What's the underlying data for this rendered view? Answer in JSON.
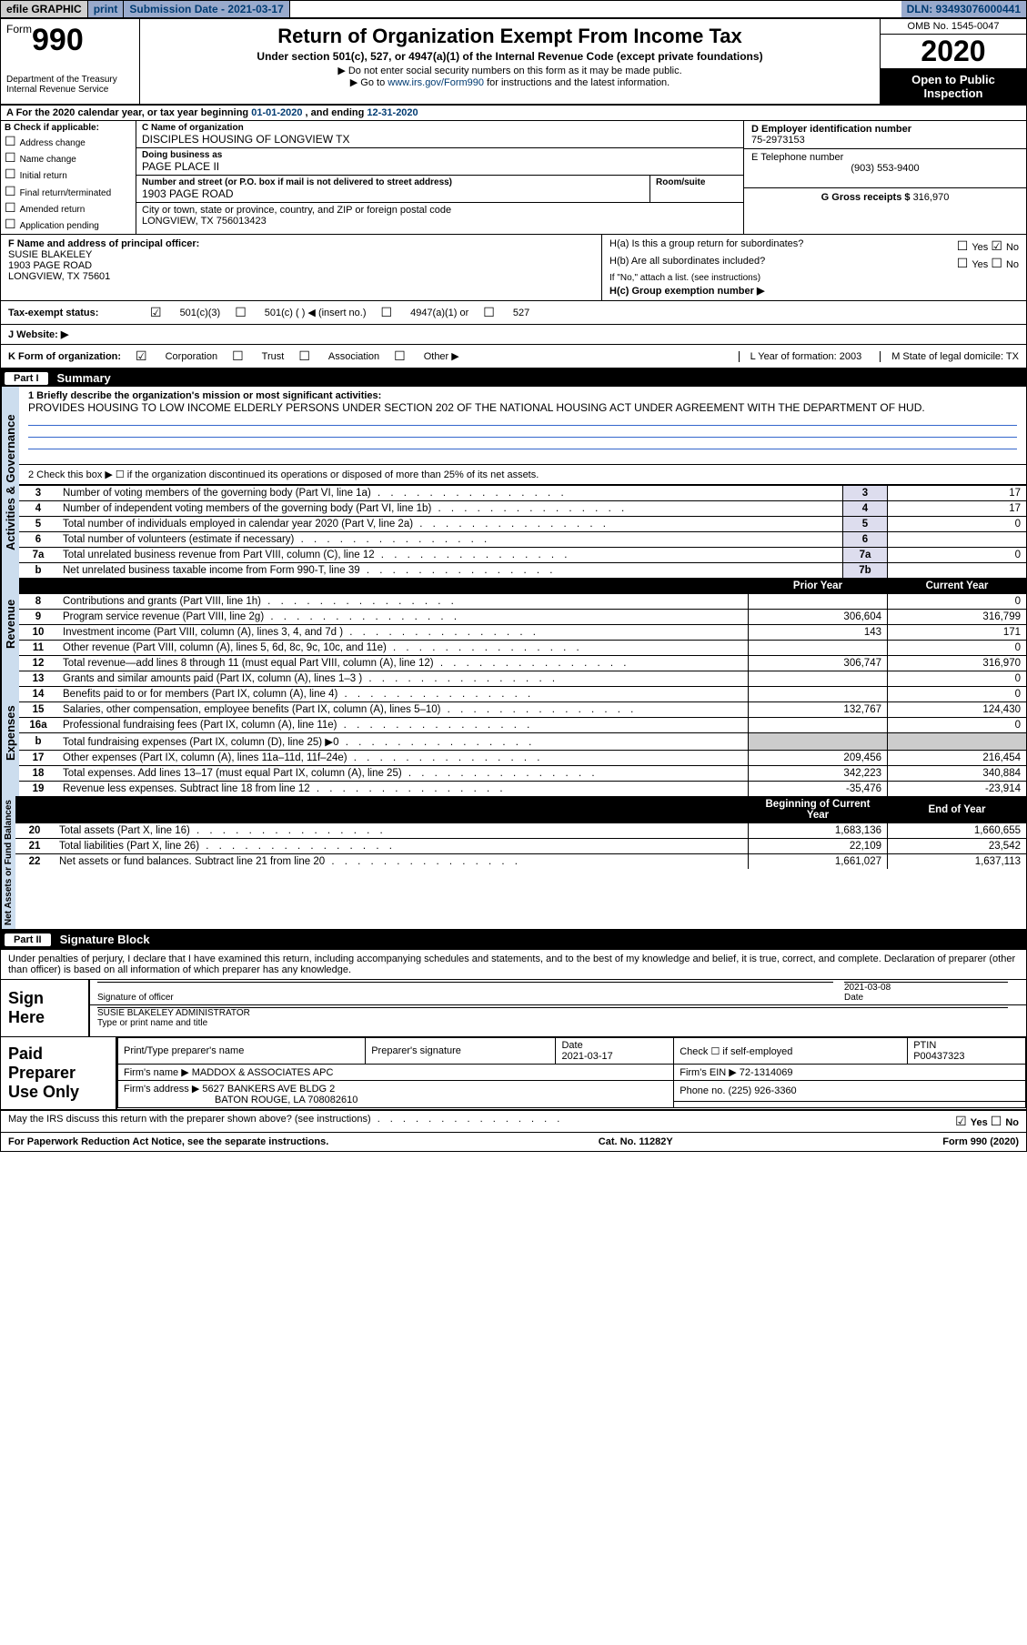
{
  "topbar": {
    "efile": "efile GRAPHIC",
    "print": "print",
    "subdate_label": "Submission Date - ",
    "subdate_value": "2021-03-17",
    "dln": "DLN: 93493076000441"
  },
  "header": {
    "form_word": "Form",
    "form_num": "990",
    "dept": "Department of the Treasury\nInternal Revenue Service",
    "title": "Return of Organization Exempt From Income Tax",
    "sub1": "Under section 501(c), 527, or 4947(a)(1) of the Internal Revenue Code (except private foundations)",
    "sub2": "▶ Do not enter social security numbers on this form as it may be made public.",
    "sub3_pre": "▶ Go to ",
    "sub3_link": "www.irs.gov/Form990",
    "sub3_post": " for instructions and the latest information.",
    "omb": "OMB No. 1545-0047",
    "year": "2020",
    "open": "Open to Public Inspection"
  },
  "rowA": {
    "text_pre": "A For the 2020 calendar year, or tax year beginning ",
    "begin": "01-01-2020",
    "mid": " , and ending ",
    "end": "12-31-2020"
  },
  "colB": {
    "title": "B Check if applicable:",
    "opts": [
      "Address change",
      "Name change",
      "Initial return",
      "Final return/terminated",
      "Amended return",
      "Application pending"
    ]
  },
  "colC": {
    "name_label": "C Name of organization",
    "name": "DISCIPLES HOUSING OF LONGVIEW TX",
    "dba_label": "Doing business as",
    "dba": "PAGE PLACE II",
    "street_label": "Number and street (or P.O. box if mail is not delivered to street address)",
    "street": "1903 PAGE ROAD",
    "room_label": "Room/suite",
    "city_label": "City or town, state or province, country, and ZIP or foreign postal code",
    "city": "LONGVIEW, TX  756013423"
  },
  "colD": {
    "ein_label": "D Employer identification number",
    "ein": "75-2973153",
    "phone_label": "E Telephone number",
    "phone": "(903) 553-9400",
    "gross_label": "G Gross receipts $ ",
    "gross": "316,970"
  },
  "rowF": {
    "label": "F  Name and address of principal officer:",
    "name": "SUSIE BLAKELEY",
    "addr1": "1903 PAGE ROAD",
    "addr2": "LONGVIEW, TX  75601"
  },
  "rowH": {
    "ha": "H(a)  Is this a group return for subordinates?",
    "ha_yes": "Yes",
    "ha_no": "No",
    "hb": "H(b)  Are all subordinates included?",
    "hb_note": "If \"No,\" attach a list. (see instructions)",
    "hc": "H(c)  Group exemption number ▶"
  },
  "rowI": {
    "label": "Tax-exempt status:",
    "opts": [
      "501(c)(3)",
      "501(c) (  ) ◀ (insert no.)",
      "4947(a)(1) or",
      "527"
    ]
  },
  "rowJ": {
    "label": "J  Website: ▶"
  },
  "rowK": {
    "label": "K Form of organization:",
    "opts": [
      "Corporation",
      "Trust",
      "Association",
      "Other ▶"
    ],
    "L": "L Year of formation: 2003",
    "M": "M State of legal domicile: TX"
  },
  "parts": {
    "p1": "Part I",
    "p1t": "Summary",
    "p2": "Part II",
    "p2t": "Signature Block"
  },
  "summary": {
    "line1_label": "1  Briefly describe the organization's mission or most significant activities:",
    "mission": "PROVIDES HOUSING TO LOW INCOME ELDERLY PERSONS UNDER SECTION 202 OF THE NATIONAL HOUSING ACT UNDER AGREEMENT WITH THE DEPARTMENT OF HUD.",
    "line2": "2  Check this box ▶ ☐  if the organization discontinued its operations or disposed of more than 25% of its net assets."
  },
  "gov_lines": [
    {
      "n": "3",
      "desc": "Number of voting members of the governing body (Part VI, line 1a)",
      "box": "3",
      "val": "17"
    },
    {
      "n": "4",
      "desc": "Number of independent voting members of the governing body (Part VI, line 1b)",
      "box": "4",
      "val": "17"
    },
    {
      "n": "5",
      "desc": "Total number of individuals employed in calendar year 2020 (Part V, line 2a)",
      "box": "5",
      "val": "0"
    },
    {
      "n": "6",
      "desc": "Total number of volunteers (estimate if necessary)",
      "box": "6",
      "val": ""
    },
    {
      "n": "7a",
      "desc": "Total unrelated business revenue from Part VIII, column (C), line 12",
      "box": "7a",
      "val": "0"
    },
    {
      "n": "b",
      "desc": "Net unrelated business taxable income from Form 990-T, line 39",
      "box": "7b",
      "val": ""
    }
  ],
  "year_hdr": {
    "prior": "Prior Year",
    "current": "Current Year"
  },
  "revenue_lines": [
    {
      "n": "8",
      "desc": "Contributions and grants (Part VIII, line 1h)",
      "py": "",
      "cy": "0"
    },
    {
      "n": "9",
      "desc": "Program service revenue (Part VIII, line 2g)",
      "py": "306,604",
      "cy": "316,799"
    },
    {
      "n": "10",
      "desc": "Investment income (Part VIII, column (A), lines 3, 4, and 7d )",
      "py": "143",
      "cy": "171"
    },
    {
      "n": "11",
      "desc": "Other revenue (Part VIII, column (A), lines 5, 6d, 8c, 9c, 10c, and 11e)",
      "py": "",
      "cy": "0"
    },
    {
      "n": "12",
      "desc": "Total revenue—add lines 8 through 11 (must equal Part VIII, column (A), line 12)",
      "py": "306,747",
      "cy": "316,970"
    }
  ],
  "expense_lines": [
    {
      "n": "13",
      "desc": "Grants and similar amounts paid (Part IX, column (A), lines 1–3 )",
      "py": "",
      "cy": "0"
    },
    {
      "n": "14",
      "desc": "Benefits paid to or for members (Part IX, column (A), line 4)",
      "py": "",
      "cy": "0"
    },
    {
      "n": "15",
      "desc": "Salaries, other compensation, employee benefits (Part IX, column (A), lines 5–10)",
      "py": "132,767",
      "cy": "124,430"
    },
    {
      "n": "16a",
      "desc": "Professional fundraising fees (Part IX, column (A), line 11e)",
      "py": "",
      "cy": "0"
    },
    {
      "n": "b",
      "desc": "Total fundraising expenses (Part IX, column (D), line 25) ▶0",
      "py": "shade",
      "cy": "shade"
    },
    {
      "n": "17",
      "desc": "Other expenses (Part IX, column (A), lines 11a–11d, 11f–24e)",
      "py": "209,456",
      "cy": "216,454"
    },
    {
      "n": "18",
      "desc": "Total expenses. Add lines 13–17 (must equal Part IX, column (A), line 25)",
      "py": "342,223",
      "cy": "340,884"
    },
    {
      "n": "19",
      "desc": "Revenue less expenses. Subtract line 18 from line 12",
      "py": "-35,476",
      "cy": "-23,914"
    }
  ],
  "net_hdr": {
    "begin": "Beginning of Current Year",
    "end": "End of Year"
  },
  "net_lines": [
    {
      "n": "20",
      "desc": "Total assets (Part X, line 16)",
      "py": "1,683,136",
      "cy": "1,660,655"
    },
    {
      "n": "21",
      "desc": "Total liabilities (Part X, line 26)",
      "py": "22,109",
      "cy": "23,542"
    },
    {
      "n": "22",
      "desc": "Net assets or fund balances. Subtract line 21 from line 20",
      "py": "1,661,027",
      "cy": "1,637,113"
    }
  ],
  "bands": {
    "gov": "Activities & Governance",
    "rev": "Revenue",
    "exp": "Expenses",
    "net": "Net Assets or Fund Balances"
  },
  "declare": "Under penalties of perjury, I declare that I have examined this return, including accompanying schedules and statements, and to the best of my knowledge and belief, it is true, correct, and complete. Declaration of preparer (other than officer) is based on all information of which preparer has any knowledge.",
  "sign": {
    "left": "Sign Here",
    "sig_label": "Signature of officer",
    "date_label": "Date",
    "date": "2021-03-08",
    "name": "SUSIE BLAKELEY  ADMINISTRATOR",
    "name_label": "Type or print name and title"
  },
  "prep": {
    "left": "Paid Preparer Use Only",
    "h_name": "Print/Type preparer's name",
    "h_sig": "Preparer's signature",
    "h_date": "Date",
    "date": "2021-03-17",
    "check": "Check ☐ if self-employed",
    "ptin_label": "PTIN",
    "ptin": "P00437323",
    "firm_label": "Firm's name    ▶",
    "firm": "MADDOX & ASSOCIATES APC",
    "ein_label": "Firm's EIN ▶",
    "ein": "72-1314069",
    "addr_label": "Firm's address ▶",
    "addr1": "5627 BANKERS AVE BLDG 2",
    "addr2": "BATON ROUGE, LA  708082610",
    "phone_label": "Phone no.",
    "phone": "(225) 926-3360"
  },
  "discuss": {
    "q": "May the IRS discuss this return with the preparer shown above? (see instructions)",
    "yes": "Yes",
    "no": "No"
  },
  "footer": {
    "left": "For Paperwork Reduction Act Notice, see the separate instructions.",
    "mid": "Cat. No. 11282Y",
    "right": "Form 990 (2020)"
  }
}
